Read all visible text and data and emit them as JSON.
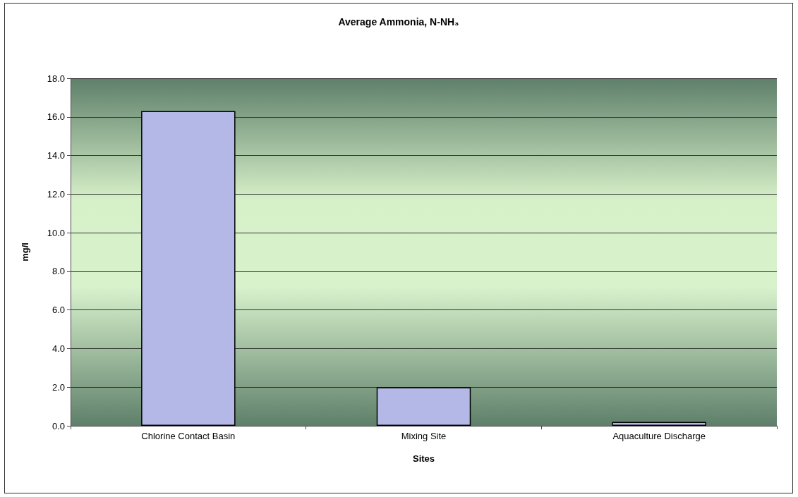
{
  "chart_data": {
    "type": "bar",
    "title": "Average Ammonia, N-NH₃",
    "xlabel": "Sites",
    "ylabel": "mg/l",
    "categories": [
      "Chlorine Contact Basin",
      "Mixing Site",
      "Aquaculture Discharge"
    ],
    "values": [
      16.3,
      2.0,
      0.2
    ],
    "color": "#b4b8e6",
    "ylim": [
      0,
      18
    ],
    "yticks": [
      {
        "value": 0,
        "label": "0.0"
      },
      {
        "value": 2,
        "label": "2.0"
      },
      {
        "value": 4,
        "label": "4.0"
      },
      {
        "value": 6,
        "label": "6.0"
      },
      {
        "value": 8,
        "label": "8.0"
      },
      {
        "value": 10,
        "label": "10.0"
      },
      {
        "value": 12,
        "label": "12.0"
      },
      {
        "value": 14,
        "label": "14.0"
      },
      {
        "value": 16,
        "label": "16.0"
      },
      {
        "value": 18,
        "label": "18.0"
      }
    ],
    "grid": "y"
  }
}
